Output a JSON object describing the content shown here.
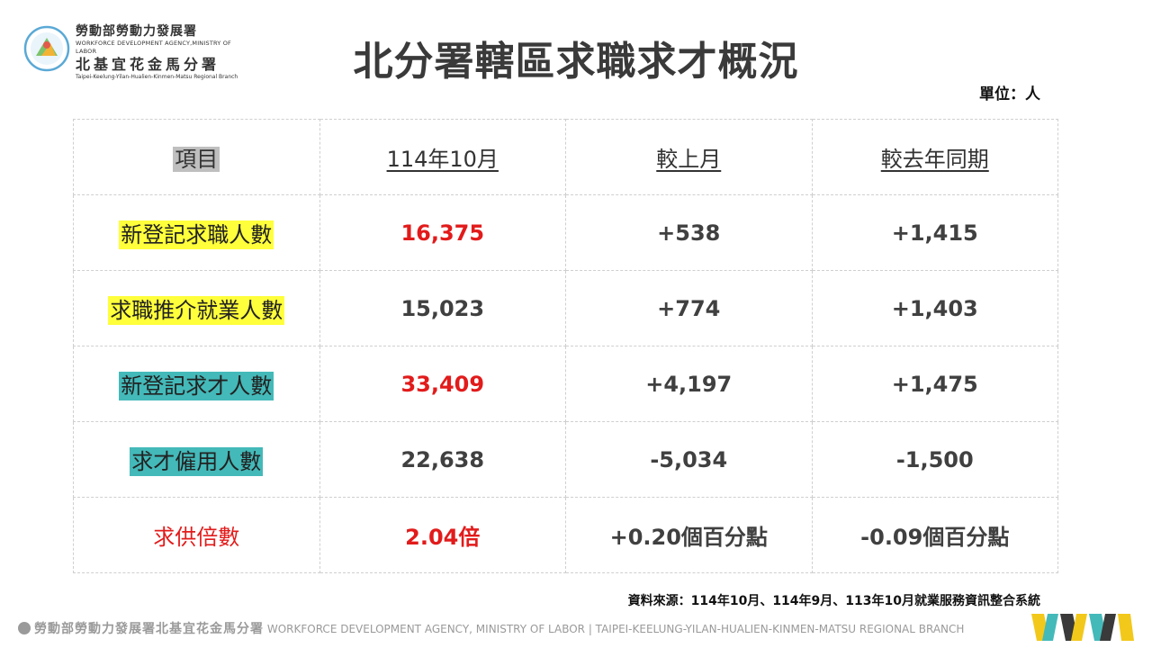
{
  "logo": {
    "zh_line1": "勞動部勞動力發展署",
    "en_line1": "WORKFORCE DEVELOPMENT AGENCY,MINISTRY OF LABOR",
    "zh_line2": "北基宜花金馬分署",
    "en_line2": "Taipei-Keelung-Yilan-Hualien-Kinmen-Matsu Regional Branch"
  },
  "title": "北分署轄區求職求才概況",
  "unit": "單位：人",
  "table": {
    "headers": [
      "項目",
      "114年10月",
      "較上月",
      "較去年同期"
    ],
    "rows": [
      {
        "label": "新登記求職人數",
        "value": "16,375",
        "mom": "+538",
        "yoy": "+1,415"
      },
      {
        "label": "求職推介就業人數",
        "value": "15,023",
        "mom": "+774",
        "yoy": "+1,403"
      },
      {
        "label": "新登記求才人數",
        "value": "33,409",
        "mom": "+4,197",
        "yoy": "+1,475"
      },
      {
        "label": "求才僱用人數",
        "value": "22,638",
        "mom": "-5,034",
        "yoy": "-1,500"
      },
      {
        "label": "求供倍數",
        "value": "2.04倍",
        "mom": "+0.20個百分點",
        "yoy": "-0.09個百分點"
      }
    ]
  },
  "source": "資料來源：114年10月、114年9月、113年10月就業服務資訊整合系統",
  "footer": {
    "zh": "勞動部勞動力發展署北基宜花金馬分署",
    "en": "WORKFORCE DEVELOPMENT AGENCY, MINISTRY OF LABOR  |  TAIPEI-KEELUNG-YILAN-HUALIEN-KINMEN-MATSU REGIONAL BRANCH"
  },
  "colors": {
    "highlight_yellow": "#ffff3b",
    "highlight_teal": "#44b9b9",
    "accent_red": "#e21b1b"
  }
}
